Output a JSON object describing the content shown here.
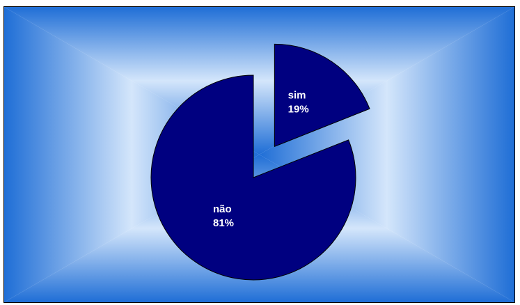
{
  "chart_data": {
    "type": "pie",
    "title": "",
    "exploded": "sim",
    "background": {
      "center": "#d4e6fb",
      "edge": "#1f6ed6"
    },
    "slices": [
      {
        "label": "sim",
        "value": 19,
        "percent_label": "19%",
        "color": "#000080"
      },
      {
        "label": "não",
        "value": 81,
        "percent_label": "81%",
        "color": "#000080"
      }
    ]
  }
}
